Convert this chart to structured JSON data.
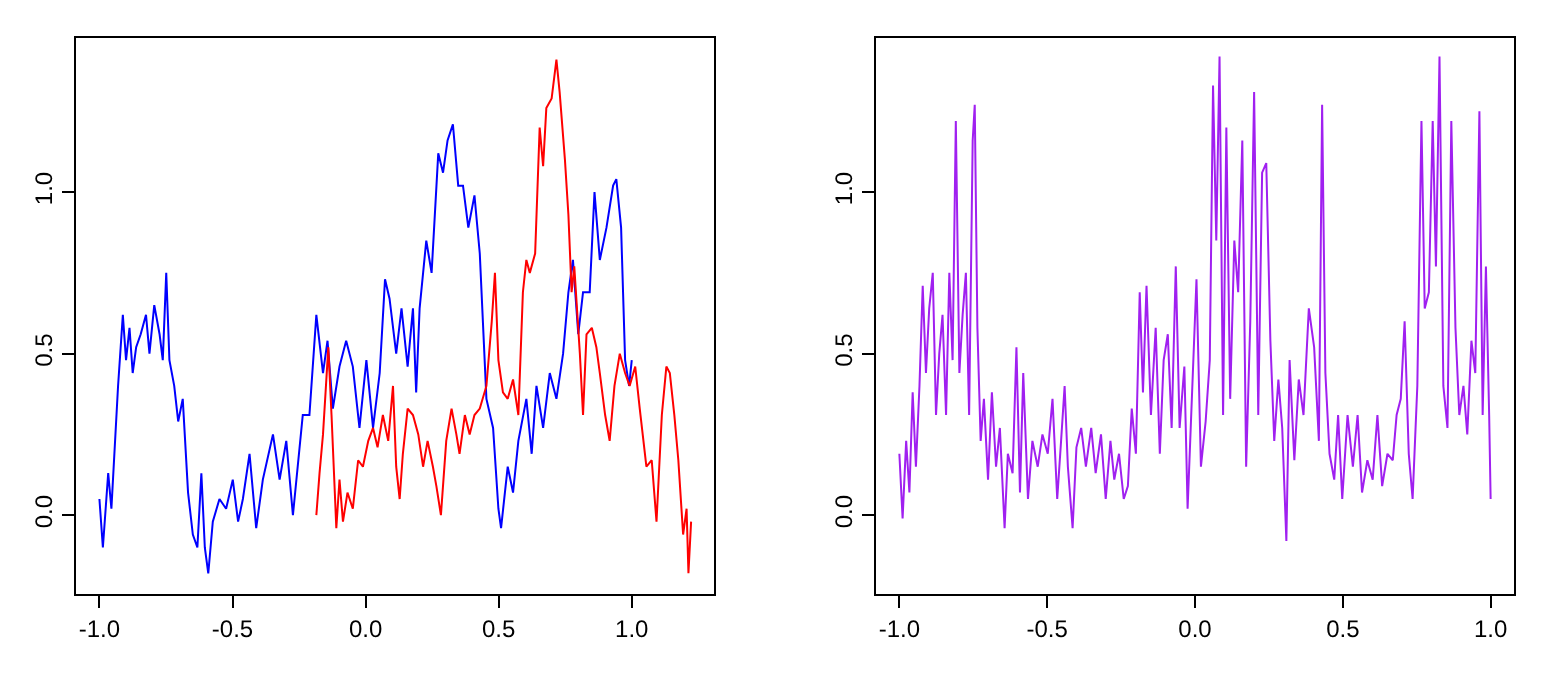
{
  "chart_data": [
    {
      "type": "line",
      "marker": "none",
      "line_style": "solid",
      "grid": false,
      "xlim": [
        -1.088,
        1.309
      ],
      "ylim": [
        -0.244,
        1.477
      ],
      "xticks": [
        {
          "value": -1,
          "label": "-1.0"
        },
        {
          "value": -0.5,
          "label": "-0.5"
        },
        {
          "value": 0,
          "label": "0.0"
        },
        {
          "value": 0.5,
          "label": "0.5"
        },
        {
          "value": 1,
          "label": "1.0"
        }
      ],
      "yticks": [
        {
          "value": 0,
          "label": "0.0"
        },
        {
          "value": 0.5,
          "label": "0.5"
        },
        {
          "value": 1,
          "label": "1.0"
        }
      ],
      "series": [
        {
          "color": "#0000ff",
          "x": [
            -1.0,
            -0.987,
            -0.967,
            -0.955,
            -0.93,
            -0.912,
            -0.9,
            -0.887,
            -0.875,
            -0.862,
            -0.845,
            -0.825,
            -0.812,
            -0.794,
            -0.774,
            -0.762,
            -0.749,
            -0.737,
            -0.719,
            -0.704,
            -0.687,
            -0.667,
            -0.649,
            -0.632,
            -0.617,
            -0.604,
            -0.591,
            -0.574,
            -0.549,
            -0.524,
            -0.499,
            -0.479,
            -0.461,
            -0.436,
            -0.411,
            -0.386,
            -0.348,
            -0.323,
            -0.298,
            -0.273,
            -0.236,
            -0.211,
            -0.185,
            -0.16,
            -0.143,
            -0.123,
            -0.098,
            -0.073,
            -0.048,
            -0.023,
            0.003,
            0.028,
            0.053,
            0.073,
            0.09,
            0.115,
            0.135,
            0.158,
            0.178,
            0.19,
            0.203,
            0.228,
            0.248,
            0.273,
            0.291,
            0.308,
            0.328,
            0.348,
            0.366,
            0.386,
            0.409,
            0.429,
            0.454,
            0.479,
            0.499,
            0.509,
            0.534,
            0.554,
            0.574,
            0.604,
            0.624,
            0.642,
            0.667,
            0.692,
            0.717,
            0.742,
            0.762,
            0.779,
            0.799,
            0.817,
            0.842,
            0.86,
            0.88,
            0.905,
            0.93,
            0.942,
            0.96,
            0.975,
            0.99,
            1.0
          ],
          "values": [
            0.05,
            -0.1,
            0.13,
            0.02,
            0.4,
            0.62,
            0.48,
            0.58,
            0.44,
            0.52,
            0.56,
            0.62,
            0.5,
            0.65,
            0.56,
            0.48,
            0.75,
            0.48,
            0.4,
            0.29,
            0.36,
            0.07,
            -0.06,
            -0.1,
            0.13,
            -0.1,
            -0.18,
            -0.02,
            0.05,
            0.02,
            0.11,
            -0.02,
            0.05,
            0.19,
            -0.04,
            0.11,
            0.25,
            0.11,
            0.23,
            0.0,
            0.31,
            0.31,
            0.62,
            0.44,
            0.54,
            0.33,
            0.46,
            0.54,
            0.46,
            0.27,
            0.48,
            0.27,
            0.44,
            0.73,
            0.67,
            0.5,
            0.64,
            0.46,
            0.64,
            0.38,
            0.64,
            0.85,
            0.75,
            1.12,
            1.06,
            1.16,
            1.21,
            1.02,
            1.02,
            0.89,
            0.99,
            0.81,
            0.36,
            0.27,
            0.02,
            -0.04,
            0.15,
            0.07,
            0.23,
            0.36,
            0.19,
            0.4,
            0.27,
            0.44,
            0.36,
            0.5,
            0.69,
            0.79,
            0.56,
            0.69,
            0.69,
            1.0,
            0.79,
            0.89,
            1.02,
            1.04,
            0.89,
            0.48,
            0.4,
            0.48
          ]
        },
        {
          "color": "#ff0000",
          "x": [
            -0.185,
            -0.173,
            -0.16,
            -0.14,
            -0.128,
            -0.11,
            -0.098,
            -0.085,
            -0.068,
            -0.048,
            -0.028,
            -0.01,
            0.01,
            0.028,
            0.045,
            0.065,
            0.085,
            0.103,
            0.115,
            0.128,
            0.14,
            0.158,
            0.178,
            0.198,
            0.216,
            0.233,
            0.253,
            0.266,
            0.283,
            0.303,
            0.323,
            0.341,
            0.353,
            0.373,
            0.391,
            0.409,
            0.429,
            0.454,
            0.474,
            0.486,
            0.499,
            0.516,
            0.534,
            0.554,
            0.574,
            0.591,
            0.604,
            0.617,
            0.637,
            0.654,
            0.667,
            0.679,
            0.699,
            0.717,
            0.729,
            0.749,
            0.762,
            0.774,
            0.784,
            0.805,
            0.817,
            0.83,
            0.85,
            0.867,
            0.88,
            0.9,
            0.917,
            0.935,
            0.955,
            0.975,
            0.992,
            1.013,
            1.03,
            1.055,
            1.075,
            1.093,
            1.113,
            1.13,
            1.143,
            1.16,
            1.175,
            1.193,
            1.206,
            1.213,
            1.223
          ],
          "values": [
            0.0,
            0.13,
            0.25,
            0.52,
            0.31,
            -0.04,
            0.11,
            -0.02,
            0.07,
            0.02,
            0.17,
            0.15,
            0.23,
            0.27,
            0.21,
            0.31,
            0.23,
            0.4,
            0.15,
            0.05,
            0.19,
            0.33,
            0.31,
            0.25,
            0.15,
            0.23,
            0.15,
            0.09,
            0.0,
            0.23,
            0.33,
            0.25,
            0.19,
            0.31,
            0.25,
            0.31,
            0.33,
            0.4,
            0.6,
            0.75,
            0.48,
            0.38,
            0.36,
            0.42,
            0.31,
            0.69,
            0.79,
            0.75,
            0.81,
            1.2,
            1.08,
            1.26,
            1.29,
            1.41,
            1.31,
            1.1,
            0.93,
            0.69,
            0.77,
            0.5,
            0.31,
            0.56,
            0.58,
            0.52,
            0.44,
            0.31,
            0.23,
            0.4,
            0.5,
            0.44,
            0.4,
            0.46,
            0.33,
            0.15,
            0.17,
            -0.02,
            0.31,
            0.46,
            0.44,
            0.31,
            0.17,
            -0.06,
            0.02,
            -0.18,
            -0.02
          ]
        }
      ]
    },
    {
      "type": "line",
      "marker": "none",
      "line_style": "solid",
      "grid": false,
      "xlim": [
        -1.079,
        1.079
      ],
      "ylim": [
        -0.244,
        1.477
      ],
      "xticks": [
        {
          "value": -1,
          "label": "-1.0"
        },
        {
          "value": -0.5,
          "label": "-0.5"
        },
        {
          "value": 0,
          "label": "0.0"
        },
        {
          "value": 0.5,
          "label": "0.5"
        },
        {
          "value": 1,
          "label": "1.0"
        }
      ],
      "yticks": [
        {
          "value": 0,
          "label": "0.0"
        },
        {
          "value": 0.5,
          "label": "0.5"
        },
        {
          "value": 1,
          "label": "1.0"
        }
      ],
      "series": [
        {
          "color": "#a020f0",
          "x": [
            -1.0,
            -0.989,
            -0.977,
            -0.966,
            -0.955,
            -0.944,
            -0.932,
            -0.921,
            -0.91,
            -0.899,
            -0.887,
            -0.876,
            -0.865,
            -0.854,
            -0.842,
            -0.831,
            -0.82,
            -0.809,
            -0.797,
            -0.786,
            -0.775,
            -0.764,
            -0.752,
            -0.745,
            -0.736,
            -0.725,
            -0.714,
            -0.7,
            -0.687,
            -0.673,
            -0.66,
            -0.644,
            -0.633,
            -0.617,
            -0.604,
            -0.592,
            -0.581,
            -0.565,
            -0.55,
            -0.532,
            -0.516,
            -0.498,
            -0.482,
            -0.466,
            -0.453,
            -0.441,
            -0.43,
            -0.414,
            -0.401,
            -0.385,
            -0.369,
            -0.351,
            -0.336,
            -0.318,
            -0.302,
            -0.286,
            -0.273,
            -0.257,
            -0.241,
            -0.227,
            -0.214,
            -0.2,
            -0.187,
            -0.176,
            -0.164,
            -0.149,
            -0.133,
            -0.119,
            -0.106,
            -0.092,
            -0.079,
            -0.065,
            -0.052,
            -0.036,
            -0.025,
            -0.009,
            0.005,
            0.02,
            0.036,
            0.05,
            0.061,
            0.072,
            0.083,
            0.095,
            0.106,
            0.119,
            0.133,
            0.146,
            0.16,
            0.173,
            0.187,
            0.2,
            0.214,
            0.227,
            0.241,
            0.255,
            0.268,
            0.282,
            0.295,
            0.309,
            0.32,
            0.336,
            0.351,
            0.367,
            0.385,
            0.403,
            0.419,
            0.43,
            0.441,
            0.455,
            0.471,
            0.484,
            0.498,
            0.516,
            0.534,
            0.55,
            0.565,
            0.583,
            0.601,
            0.617,
            0.633,
            0.651,
            0.669,
            0.682,
            0.696,
            0.709,
            0.723,
            0.736,
            0.752,
            0.766,
            0.777,
            0.791,
            0.804,
            0.815,
            0.827,
            0.84,
            0.854,
            0.867,
            0.881,
            0.894,
            0.908,
            0.921,
            0.935,
            0.948,
            0.962,
            0.973,
            0.984,
            0.995,
            1.0
          ],
          "values": [
            0.19,
            -0.01,
            0.23,
            0.07,
            0.38,
            0.15,
            0.4,
            0.71,
            0.44,
            0.64,
            0.75,
            0.31,
            0.5,
            0.62,
            0.31,
            0.75,
            0.48,
            1.22,
            0.44,
            0.62,
            0.75,
            0.31,
            1.16,
            1.27,
            0.58,
            0.23,
            0.36,
            0.11,
            0.38,
            0.15,
            0.27,
            -0.04,
            0.19,
            0.13,
            0.52,
            0.07,
            0.44,
            0.05,
            0.23,
            0.15,
            0.25,
            0.19,
            0.36,
            0.05,
            0.23,
            0.4,
            0.15,
            -0.04,
            0.21,
            0.27,
            0.15,
            0.27,
            0.13,
            0.25,
            0.05,
            0.23,
            0.11,
            0.19,
            0.05,
            0.09,
            0.33,
            0.19,
            0.69,
            0.38,
            0.71,
            0.31,
            0.58,
            0.19,
            0.48,
            0.56,
            0.27,
            0.77,
            0.27,
            0.46,
            0.02,
            0.4,
            0.73,
            0.15,
            0.29,
            0.48,
            1.33,
            0.85,
            1.42,
            0.31,
            1.2,
            0.36,
            0.85,
            0.69,
            1.16,
            0.15,
            0.6,
            1.31,
            0.31,
            1.06,
            1.09,
            0.54,
            0.23,
            0.42,
            0.27,
            -0.08,
            0.48,
            0.17,
            0.42,
            0.31,
            0.64,
            0.52,
            0.23,
            1.27,
            0.44,
            0.19,
            0.11,
            0.31,
            0.05,
            0.31,
            0.15,
            0.31,
            0.07,
            0.17,
            0.11,
            0.31,
            0.09,
            0.19,
            0.17,
            0.31,
            0.36,
            0.6,
            0.19,
            0.05,
            0.4,
            1.22,
            0.64,
            0.69,
            1.22,
            0.77,
            1.42,
            0.4,
            0.27,
            1.22,
            0.58,
            0.31,
            0.4,
            0.25,
            0.54,
            0.44,
            1.25,
            0.31,
            0.77,
            0.31,
            0.05
          ]
        }
      ]
    }
  ]
}
